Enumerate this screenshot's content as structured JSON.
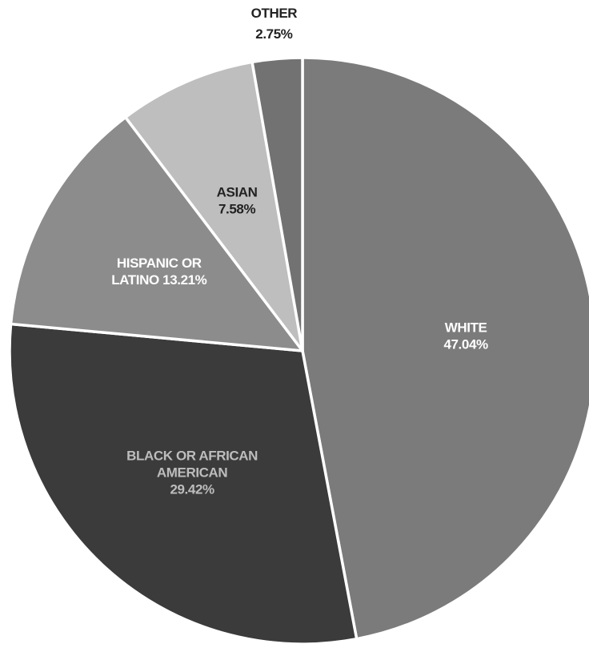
{
  "chart_data": {
    "type": "pie",
    "start_angle_deg": 0,
    "direction": "clockwise",
    "slices": [
      {
        "label_lines": [
          "WHITE",
          "47.04%"
        ],
        "name": "WHITE",
        "value": 47.04,
        "color": "#7b7b7b",
        "text_color": "#ffffff"
      },
      {
        "label_lines": [
          "BLACK OR AFRICAN",
          "AMERICAN",
          "29.42%"
        ],
        "name": "BLACK OR AFRICAN AMERICAN",
        "value": 29.42,
        "color": "#3b3b3b",
        "text_color": "#bdbdbd"
      },
      {
        "label_lines": [
          "HISPANIC OR",
          "LATINO 13.21%"
        ],
        "name": "HISPANIC OR LATINO",
        "value": 13.21,
        "color": "#8c8c8c",
        "text_color": "#ffffff"
      },
      {
        "label_lines": [
          "ASIAN",
          "7.58%"
        ],
        "name": "ASIAN",
        "value": 7.58,
        "color": "#bebebe",
        "text_color": "#222222"
      },
      {
        "label_lines": [
          "OTHER",
          "2.75%"
        ],
        "name": "OTHER",
        "value": 2.75,
        "color": "#727272",
        "text_color": "#222222",
        "label_outside": true
      }
    ]
  }
}
